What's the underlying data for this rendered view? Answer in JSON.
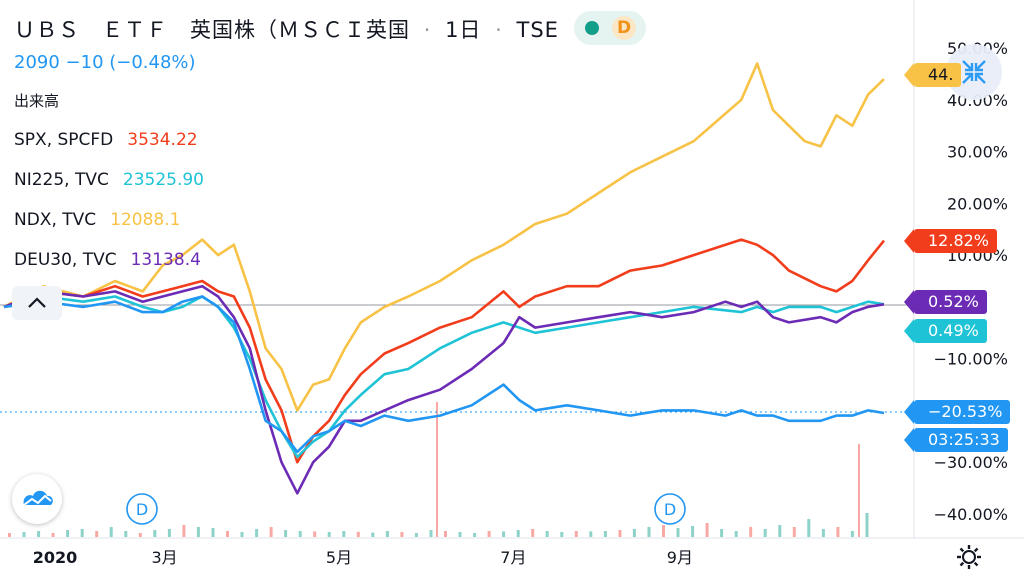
{
  "header": {
    "title": "ＵＢＳ　ＥＴＦ　英国株（ＭＳＣＩ英国",
    "separator": "·",
    "interval": "1日",
    "exchange": "TSE",
    "price_line": "2090  −10 (−0.48%)",
    "volume_label": "出来高",
    "badge_letter": "D"
  },
  "legend": [
    {
      "label": "SPX, SPCFD",
      "value": "3534.22",
      "color": "#f23d1c"
    },
    {
      "label": "NI225, TVC",
      "value": "23525.90",
      "color": "#1fc3d6"
    },
    {
      "label": "NDX, TVC",
      "value": "12088.1",
      "color": "#f7c245"
    },
    {
      "label": "DEU30, TVC",
      "value": "13138.4",
      "color": "#6c2bb5"
    }
  ],
  "right_axis": {
    "ticks": [
      "50.00%",
      "40.00%",
      "30.00%",
      "20.00%",
      "10.00%",
      "−10.00%",
      "−20.00%",
      "−30.00%",
      "−40.00%"
    ],
    "tags": [
      {
        "text": "44.",
        "color": "#f7c245"
      },
      {
        "text": "12.82%",
        "color": "#f23d1c"
      },
      {
        "text": "0.52%",
        "color": "#6c2bb5"
      },
      {
        "text": "0.49%",
        "color": "#1fc3d6"
      },
      {
        "text": "−20.53%",
        "color": "#2196f3"
      },
      {
        "text": "03:25:33",
        "color": "#2196f3"
      }
    ]
  },
  "x_axis": {
    "labels": [
      "2020",
      "3月",
      "5月",
      "7月",
      "9月"
    ]
  },
  "event_markers": [
    "D",
    "D"
  ],
  "chart_data": {
    "type": "line",
    "x_unit": "trading days since start of 2020",
    "ylim": [
      -45,
      52
    ],
    "ylabel_format": "percent change",
    "series": [
      {
        "name": "NDX, TVC",
        "color": "#f7c245",
        "points": [
          [
            0,
            0
          ],
          [
            10,
            4
          ],
          [
            20,
            2
          ],
          [
            28,
            5
          ],
          [
            35,
            3
          ],
          [
            40,
            8
          ],
          [
            45,
            10
          ],
          [
            50,
            13
          ],
          [
            54,
            10
          ],
          [
            58,
            12
          ],
          [
            62,
            3
          ],
          [
            66,
            -8
          ],
          [
            70,
            -12
          ],
          [
            74,
            -20
          ],
          [
            78,
            -15
          ],
          [
            82,
            -14
          ],
          [
            86,
            -8
          ],
          [
            90,
            -3
          ],
          [
            96,
            0
          ],
          [
            102,
            2
          ],
          [
            110,
            5
          ],
          [
            118,
            9
          ],
          [
            126,
            12
          ],
          [
            134,
            16
          ],
          [
            142,
            18
          ],
          [
            150,
            22
          ],
          [
            158,
            26
          ],
          [
            166,
            29
          ],
          [
            174,
            32
          ],
          [
            180,
            36
          ],
          [
            186,
            40
          ],
          [
            190,
            47
          ],
          [
            194,
            38
          ],
          [
            198,
            35
          ],
          [
            202,
            32
          ],
          [
            206,
            31
          ],
          [
            210,
            37
          ],
          [
            214,
            35
          ],
          [
            218,
            41
          ],
          [
            222,
            44
          ]
        ]
      },
      {
        "name": "SPX, SPCFD",
        "color": "#f23d1c",
        "points": [
          [
            0,
            0
          ],
          [
            10,
            3
          ],
          [
            20,
            2
          ],
          [
            28,
            4
          ],
          [
            35,
            2
          ],
          [
            40,
            3
          ],
          [
            45,
            4
          ],
          [
            50,
            5
          ],
          [
            54,
            3
          ],
          [
            58,
            2
          ],
          [
            62,
            -4
          ],
          [
            66,
            -14
          ],
          [
            70,
            -20
          ],
          [
            74,
            -30
          ],
          [
            78,
            -25
          ],
          [
            82,
            -22
          ],
          [
            86,
            -17
          ],
          [
            90,
            -13
          ],
          [
            96,
            -9
          ],
          [
            102,
            -7
          ],
          [
            110,
            -4
          ],
          [
            118,
            -2
          ],
          [
            126,
            3
          ],
          [
            130,
            0
          ],
          [
            134,
            2
          ],
          [
            142,
            4
          ],
          [
            150,
            4
          ],
          [
            158,
            7
          ],
          [
            166,
            8
          ],
          [
            174,
            10
          ],
          [
            186,
            13
          ],
          [
            190,
            12
          ],
          [
            194,
            10
          ],
          [
            198,
            7
          ],
          [
            206,
            4
          ],
          [
            210,
            3
          ],
          [
            214,
            5
          ],
          [
            218,
            9
          ],
          [
            222,
            12.8
          ]
        ]
      },
      {
        "name": "NI225, TVC",
        "color": "#1fc3d6",
        "points": [
          [
            0,
            0
          ],
          [
            10,
            2
          ],
          [
            20,
            1
          ],
          [
            28,
            2
          ],
          [
            35,
            0
          ],
          [
            40,
            -1
          ],
          [
            45,
            0
          ],
          [
            50,
            2
          ],
          [
            54,
            0
          ],
          [
            58,
            -4
          ],
          [
            62,
            -10
          ],
          [
            66,
            -18
          ],
          [
            70,
            -24
          ],
          [
            74,
            -29
          ],
          [
            78,
            -26
          ],
          [
            82,
            -24
          ],
          [
            86,
            -20
          ],
          [
            90,
            -17
          ],
          [
            96,
            -13
          ],
          [
            102,
            -12
          ],
          [
            110,
            -8
          ],
          [
            118,
            -5
          ],
          [
            126,
            -3
          ],
          [
            134,
            -5
          ],
          [
            142,
            -4
          ],
          [
            150,
            -3
          ],
          [
            158,
            -2
          ],
          [
            166,
            -1
          ],
          [
            174,
            0
          ],
          [
            186,
            -1
          ],
          [
            190,
            0
          ],
          [
            194,
            -1
          ],
          [
            198,
            0
          ],
          [
            206,
            0
          ],
          [
            210,
            -1
          ],
          [
            214,
            0
          ],
          [
            218,
            1
          ],
          [
            222,
            0.5
          ]
        ]
      },
      {
        "name": "DEU30, TVC",
        "color": "#6c2bb5",
        "points": [
          [
            0,
            0
          ],
          [
            10,
            3
          ],
          [
            20,
            2
          ],
          [
            28,
            3
          ],
          [
            35,
            1
          ],
          [
            40,
            2
          ],
          [
            45,
            3
          ],
          [
            50,
            4
          ],
          [
            54,
            2
          ],
          [
            58,
            -2
          ],
          [
            62,
            -8
          ],
          [
            66,
            -20
          ],
          [
            70,
            -30
          ],
          [
            74,
            -36
          ],
          [
            78,
            -30
          ],
          [
            82,
            -27
          ],
          [
            86,
            -22
          ],
          [
            90,
            -22
          ],
          [
            96,
            -20
          ],
          [
            102,
            -18
          ],
          [
            110,
            -16
          ],
          [
            118,
            -12
          ],
          [
            126,
            -7
          ],
          [
            130,
            -2
          ],
          [
            134,
            -4
          ],
          [
            142,
            -3
          ],
          [
            150,
            -2
          ],
          [
            158,
            -1
          ],
          [
            166,
            -2
          ],
          [
            174,
            -1
          ],
          [
            182,
            1
          ],
          [
            186,
            0
          ],
          [
            190,
            1
          ],
          [
            194,
            -2
          ],
          [
            198,
            -3
          ],
          [
            206,
            -2
          ],
          [
            210,
            -3
          ],
          [
            214,
            -1
          ],
          [
            218,
            0
          ],
          [
            222,
            0.5
          ]
        ]
      },
      {
        "name": "UBS ETF 英国株",
        "color": "#2196f3",
        "points": [
          [
            0,
            0
          ],
          [
            10,
            1
          ],
          [
            20,
            0
          ],
          [
            28,
            1
          ],
          [
            35,
            -1
          ],
          [
            40,
            -1
          ],
          [
            45,
            1
          ],
          [
            50,
            2
          ],
          [
            54,
            0
          ],
          [
            58,
            -3
          ],
          [
            62,
            -12
          ],
          [
            66,
            -22
          ],
          [
            70,
            -24
          ],
          [
            74,
            -28
          ],
          [
            78,
            -25
          ],
          [
            82,
            -24
          ],
          [
            86,
            -22
          ],
          [
            90,
            -23
          ],
          [
            96,
            -21
          ],
          [
            102,
            -22
          ],
          [
            110,
            -21
          ],
          [
            118,
            -19
          ],
          [
            126,
            -15
          ],
          [
            130,
            -18
          ],
          [
            134,
            -20
          ],
          [
            142,
            -19
          ],
          [
            150,
            -20
          ],
          [
            158,
            -21
          ],
          [
            166,
            -20
          ],
          [
            174,
            -20
          ],
          [
            182,
            -21
          ],
          [
            186,
            -20
          ],
          [
            190,
            -21
          ],
          [
            194,
            -21
          ],
          [
            198,
            -22
          ],
          [
            202,
            -22
          ],
          [
            206,
            -22
          ],
          [
            210,
            -21
          ],
          [
            214,
            -21
          ],
          [
            218,
            -20
          ],
          [
            222,
            -20.5
          ]
        ]
      }
    ],
    "volume_bars": [
      0.2,
      0.25,
      0.3,
      0.2,
      0.35,
      0.4,
      0.3,
      0.5,
      0.3,
      0.2,
      0.35,
      0.4,
      0.6,
      0.5,
      0.45,
      0.3,
      0.25,
      0.4,
      0.5,
      0.35,
      0.3,
      0.28,
      0.25,
      0.3,
      0.26,
      0.22,
      0.3,
      0.25,
      0.2,
      0.35,
      0.3,
      0.25,
      0.2,
      0.3,
      0.28,
      0.35,
      0.4,
      0.3,
      0.25,
      0.3,
      0.28,
      0.3,
      0.35,
      0.4,
      0.5,
      0.6,
      0.45,
      0.55,
      0.7,
      0.4,
      0.3,
      0.5,
      0.4,
      0.6,
      0.5,
      0.9,
      0.4,
      0.5,
      0.3,
      1.2
    ]
  }
}
